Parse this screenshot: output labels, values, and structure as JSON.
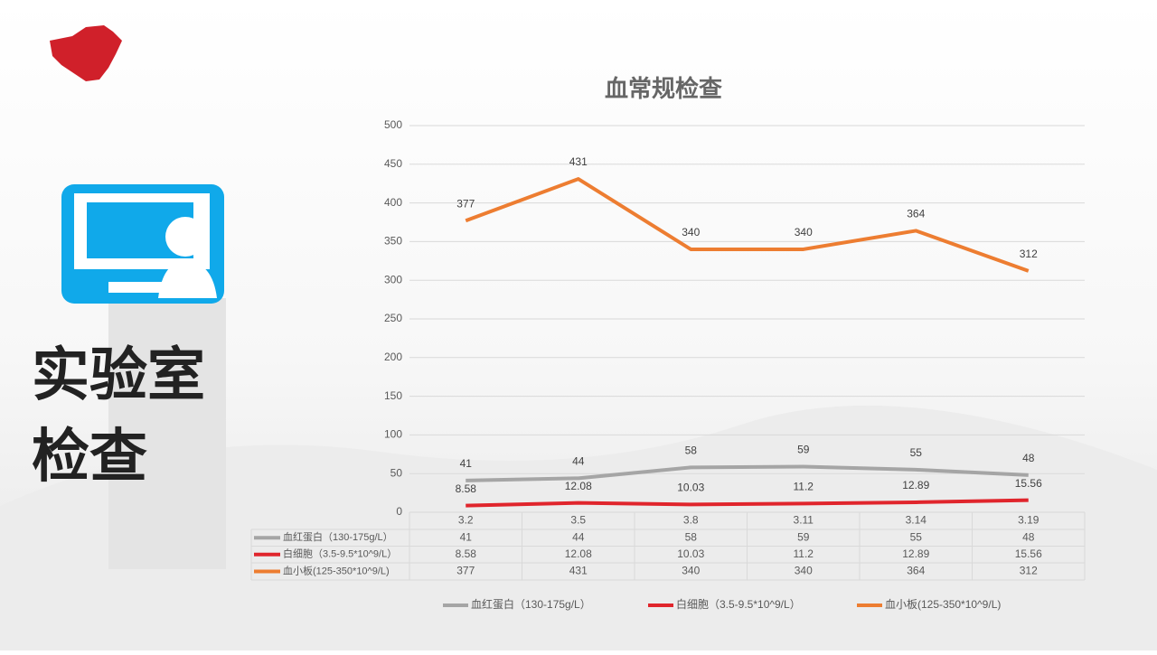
{
  "side_title": [
    "实验室",
    "检查"
  ],
  "chart_data": {
    "type": "line",
    "title": "血常规检查",
    "categories": [
      "3.2",
      "3.5",
      "3.8",
      "3.11",
      "3.14",
      "3.19"
    ],
    "series": [
      {
        "name": "血红蛋白（130-175g/L）",
        "color": "#a5a5a5",
        "values": [
          41,
          44,
          58,
          59,
          55,
          48
        ]
      },
      {
        "name": "白细胞（3.5-9.5*10^9/L）",
        "color": "#e0252c",
        "values": [
          8.58,
          12.08,
          10.03,
          11.2,
          12.89,
          15.56
        ]
      },
      {
        "name": "血小板(125-350*10^9/L)",
        "color": "#ed7d31",
        "values": [
          377,
          431,
          340,
          340,
          364,
          312
        ]
      }
    ],
    "ylim": [
      0,
      500
    ],
    "yticks": [
      0,
      50,
      100,
      150,
      200,
      250,
      300,
      350,
      400,
      450,
      500
    ],
    "grid": true,
    "data_table": true,
    "legend": "bottom"
  }
}
